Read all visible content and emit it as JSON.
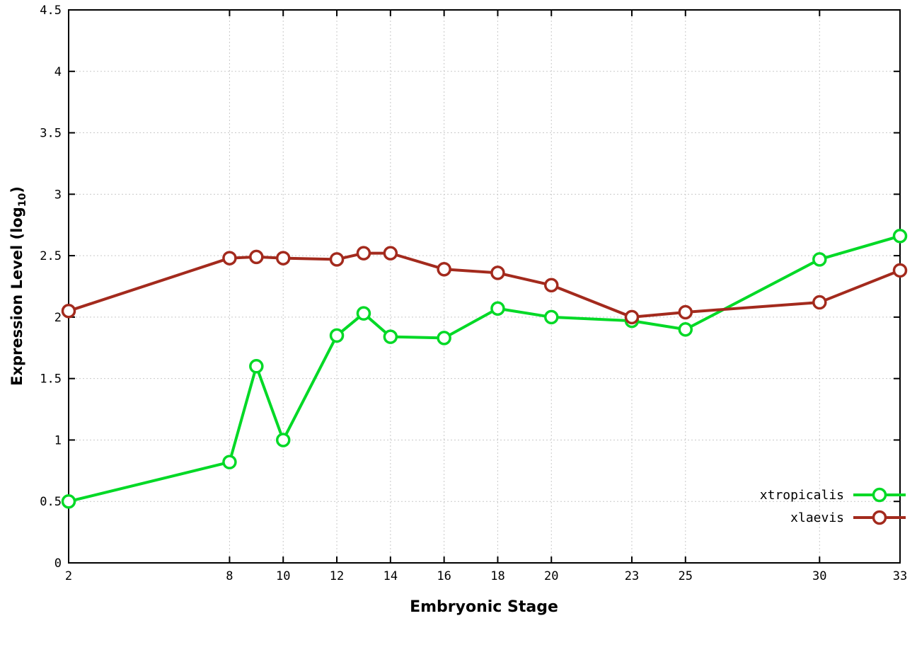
{
  "chart_data": {
    "type": "line",
    "title": "",
    "xlabel": "Embryonic Stage",
    "ylabel_prefix": "Expression Level (log",
    "ylabel_subscript": "10",
    "ylabel_suffix": ")",
    "xlim": [
      2,
      33
    ],
    "ylim": [
      0,
      4.5
    ],
    "x_ticks": [
      2,
      8,
      10,
      12,
      14,
      16,
      18,
      20,
      23,
      25,
      30,
      33
    ],
    "y_ticks": [
      0,
      0.5,
      1,
      1.5,
      2,
      2.5,
      3,
      3.5,
      4,
      4.5
    ],
    "grid": true,
    "legend_position": "bottom-right",
    "x": [
      2,
      8,
      9,
      10,
      12,
      13,
      14,
      16,
      18,
      20,
      23,
      25,
      30,
      33
    ],
    "series": [
      {
        "name": "xtropicalis",
        "color": "#00d926",
        "values": [
          0.5,
          0.82,
          1.6,
          1.0,
          1.85,
          2.03,
          1.84,
          1.83,
          2.07,
          2.0,
          1.97,
          1.9,
          2.47,
          2.66
        ]
      },
      {
        "name": "xlaevis",
        "color": "#a32a1d",
        "values": [
          2.05,
          2.48,
          2.49,
          2.48,
          2.47,
          2.52,
          2.52,
          2.39,
          2.36,
          2.26,
          2.0,
          2.04,
          2.12,
          2.38
        ]
      }
    ],
    "axis_color": "#000000",
    "grid_color": "#c9c9c9"
  }
}
